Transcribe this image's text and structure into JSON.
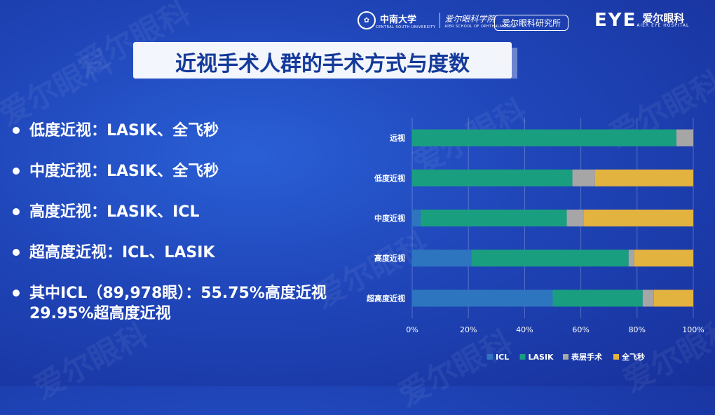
{
  "header": {
    "university_name": "中南大学",
    "university_sub": "CENTRAL SOUTH UNIVERSITY",
    "school_name": "爱尔眼科学院",
    "school_sub": "AIER SCHOOL OF OPHTHALMOLOGY",
    "institute_label": "爱尔眼科研究所",
    "brand_mark": "EYE",
    "brand_cn": "爱尔眼科",
    "brand_en": "AIER EYE HOSPITAL"
  },
  "watermark_text": "爱尔眼科",
  "title": "近视手术人群的手术方式与度数",
  "bullets": [
    "低度近视：LASIK、全飞秒",
    "中度近视：LASIK、全飞秒",
    "高度近视：LASIK、ICL",
    "超高度近视：ICL、LASIK",
    "其中ICL（89,978眼）：55.75%高度近视 29.95%超高度近视"
  ],
  "chart_data": {
    "type": "bar",
    "orientation": "horizontal",
    "stacked": "percent",
    "categories": [
      "远视",
      "低度近视",
      "中度近视",
      "高度近视",
      "超高度近视"
    ],
    "series": [
      {
        "name": "ICL",
        "color": "#2e75c0",
        "values": [
          0,
          0,
          3,
          21,
          50
        ]
      },
      {
        "name": "LASIK",
        "color": "#1a9e80",
        "values": [
          94,
          57,
          52,
          56,
          32
        ]
      },
      {
        "name": "表层手术",
        "color": "#a6a6a6",
        "values": [
          6,
          8,
          6,
          2,
          4
        ]
      },
      {
        "name": "全飞秒",
        "color": "#e3b340",
        "values": [
          0,
          35,
          39,
          21,
          14
        ]
      }
    ],
    "xlim": [
      0,
      100
    ],
    "xticks": [
      "0%",
      "20%",
      "40%",
      "60%",
      "80%",
      "100%"
    ],
    "legend_position": "bottom",
    "grid": true
  }
}
